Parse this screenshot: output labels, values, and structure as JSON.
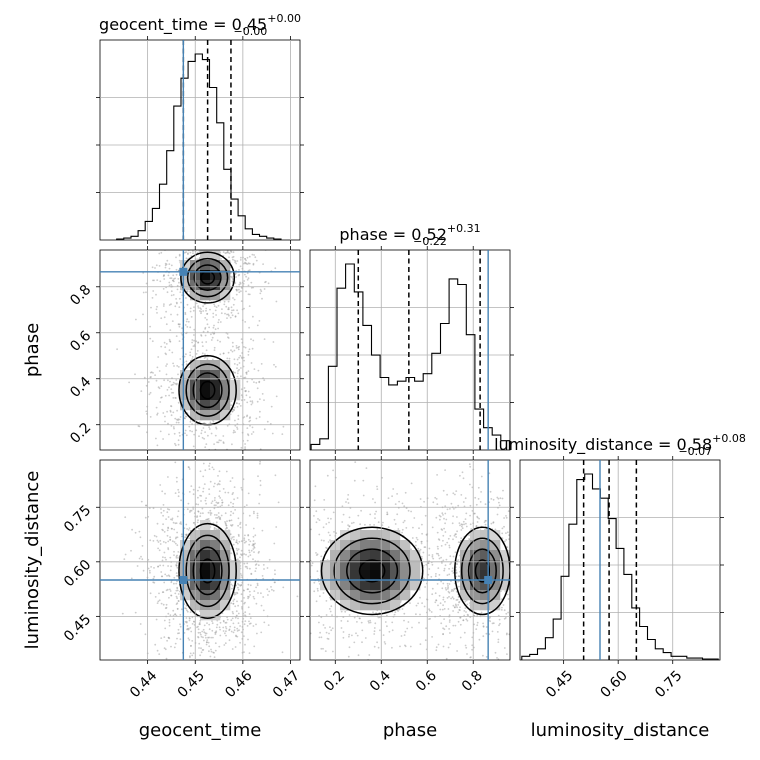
{
  "chart_data": {
    "type": "corner",
    "colors": {
      "truth": "#4682b4",
      "hist": "#000000",
      "contour": "#000000",
      "scatter": "#9a9a9a"
    },
    "parameters": [
      {
        "name": "geocent_time",
        "label": "geocent_time",
        "title_main": "geocent_time = 0.45",
        "title_up": "+0.00",
        "title_down": "−0.00",
        "range": [
          0.43,
          0.472
        ],
        "ticks": [
          0.44,
          0.45,
          0.46,
          0.47
        ],
        "tick_labels": [
          "0.44",
          "0.45",
          "0.46",
          "0.47"
        ],
        "truth": 0.4475,
        "quantiles": [
          0.4475,
          0.4526,
          0.4575
        ]
      },
      {
        "name": "phase",
        "label": "phase",
        "title_main": "phase = 0.52",
        "title_up": "+0.31",
        "title_down": "−0.22",
        "range": [
          0.09,
          0.96
        ],
        "ticks": [
          0.2,
          0.4,
          0.6,
          0.8
        ],
        "tick_labels": [
          "0.2",
          "0.4",
          "0.6",
          "0.8"
        ],
        "truth": 0.865,
        "quantiles": [
          0.3,
          0.52,
          0.83
        ]
      },
      {
        "name": "luminosity_distance",
        "label": "luminosity_distance",
        "title_main": "luminosity_distance = 0.58",
        "title_up": "+0.08",
        "title_down": "−0.07",
        "range": [
          0.33,
          0.88
        ],
        "ticks": [
          0.45,
          0.6,
          0.75
        ],
        "tick_labels": [
          "0.45",
          "0.60",
          "0.75"
        ],
        "truth": 0.55,
        "quantiles": [
          0.505,
          0.575,
          0.65
        ]
      }
    ],
    "histograms": [
      {
        "param": "geocent_time",
        "bins_start": 0.4335,
        "bin_width": 0.0015,
        "heights": [
          0.005,
          0.01,
          0.02,
          0.05,
          0.1,
          0.17,
          0.3,
          0.48,
          0.72,
          0.87,
          0.96,
          1.0,
          0.97,
          0.82,
          0.63,
          0.38,
          0.22,
          0.13,
          0.06,
          0.03,
          0.02,
          0.01,
          0.005
        ]
      },
      {
        "param": "phase",
        "bins_start": 0.095,
        "bin_width": 0.0375,
        "heights": [
          0.03,
          0.06,
          0.45,
          0.87,
          1.0,
          0.85,
          0.67,
          0.51,
          0.39,
          0.35,
          0.37,
          0.39,
          0.37,
          0.41,
          0.52,
          0.68,
          0.92,
          0.89,
          0.62,
          0.22,
          0.12,
          0.08,
          0.05
        ]
      },
      {
        "param": "luminosity_distance",
        "bins_start": 0.335,
        "bin_width": 0.0216,
        "heights": [
          0.02,
          0.03,
          0.06,
          0.12,
          0.22,
          0.45,
          0.73,
          0.97,
          1.0,
          0.92,
          0.87,
          0.76,
          0.6,
          0.46,
          0.28,
          0.18,
          0.11,
          0.06,
          0.04,
          0.02,
          0.02,
          0.01,
          0.01,
          0.005,
          0.005
        ]
      }
    ],
    "pairs": [
      {
        "x": "geocent_time",
        "y": "phase",
        "modes": [
          {
            "cx": 0.4526,
            "cy": 0.84,
            "sx": 0.0028,
            "sy": 0.055,
            "weight": 0.5
          },
          {
            "cx": 0.4526,
            "cy": 0.35,
            "sx": 0.003,
            "sy": 0.075,
            "weight": 0.5
          }
        ]
      },
      {
        "x": "geocent_time",
        "y": "luminosity_distance",
        "modes": [
          {
            "cx": 0.4526,
            "cy": 0.575,
            "sx": 0.003,
            "sy": 0.065,
            "weight": 1.0
          }
        ]
      },
      {
        "x": "phase",
        "y": "luminosity_distance",
        "modes": [
          {
            "cx": 0.36,
            "cy": 0.575,
            "sx": 0.11,
            "sy": 0.06,
            "weight": 0.55
          },
          {
            "cx": 0.84,
            "cy": 0.575,
            "sx": 0.06,
            "sy": 0.06,
            "weight": 0.45
          }
        ]
      }
    ]
  }
}
